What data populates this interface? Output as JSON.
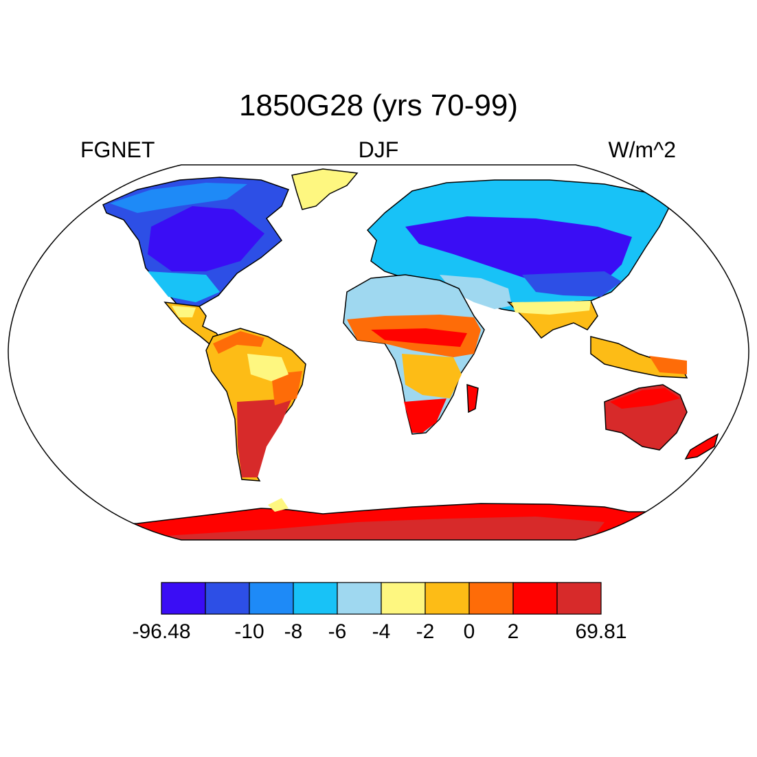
{
  "title": "1850G28 (yrs 70-99)",
  "left_label": "FGNET",
  "center_label": "DJF",
  "right_label": "W/m^2",
  "projection": "robinson",
  "colorbar": {
    "colors": [
      "#3a0df5",
      "#2d4fe6",
      "#1e8af7",
      "#18c2f7",
      "#9fd8f0",
      "#fef780",
      "#fdbc16",
      "#fe6c08",
      "#ff0200",
      "#d72a2a"
    ],
    "labels": [
      "-96.48",
      "-10",
      "-8",
      "-6",
      "-4",
      "-2",
      "0",
      "2",
      "69.81"
    ]
  }
}
